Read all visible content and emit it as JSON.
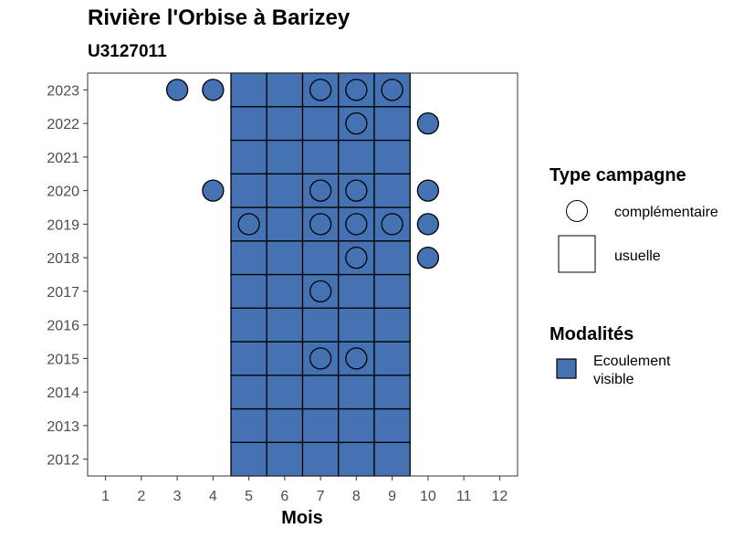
{
  "chart_data": {
    "type": "heatmap",
    "title": "Rivière l'Orbise à Barizey",
    "subtitle": "U3127011",
    "xlabel": "Mois",
    "ylabel": "",
    "x_ticks": [
      "1",
      "2",
      "3",
      "4",
      "5",
      "6",
      "7",
      "8",
      "9",
      "10",
      "11",
      "12"
    ],
    "y_ticks": [
      "2012",
      "2013",
      "2014",
      "2015",
      "2016",
      "2017",
      "2018",
      "2019",
      "2020",
      "2021",
      "2022",
      "2023"
    ],
    "xlim": [
      0.5,
      12.5
    ],
    "ylim": [
      2011.5,
      2023.5
    ],
    "tiles": [
      {
        "year": 2012,
        "months": [
          5,
          6,
          7,
          8,
          9
        ]
      },
      {
        "year": 2013,
        "months": [
          5,
          6,
          7,
          8,
          9
        ]
      },
      {
        "year": 2014,
        "months": [
          5,
          6,
          7,
          8,
          9
        ]
      },
      {
        "year": 2015,
        "months": [
          5,
          6,
          7,
          8,
          9
        ]
      },
      {
        "year": 2016,
        "months": [
          5,
          6,
          7,
          8,
          9
        ]
      },
      {
        "year": 2017,
        "months": [
          5,
          6,
          7,
          8,
          9
        ]
      },
      {
        "year": 2018,
        "months": [
          5,
          6,
          7,
          8,
          9
        ]
      },
      {
        "year": 2019,
        "months": [
          5,
          6,
          7,
          8,
          9
        ]
      },
      {
        "year": 2020,
        "months": [
          5,
          6,
          7,
          8,
          9
        ]
      },
      {
        "year": 2021,
        "months": [
          5,
          6,
          7,
          8,
          9
        ]
      },
      {
        "year": 2022,
        "months": [
          5,
          6,
          7,
          8,
          9
        ]
      },
      {
        "year": 2023,
        "months": [
          5,
          6,
          7,
          8,
          9
        ]
      }
    ],
    "points": [
      {
        "year": 2023,
        "months": [
          3,
          4,
          7,
          8,
          9
        ]
      },
      {
        "year": 2022,
        "months": [
          8,
          10
        ]
      },
      {
        "year": 2020,
        "months": [
          4,
          7,
          8,
          10
        ]
      },
      {
        "year": 2019,
        "months": [
          5,
          7,
          8,
          9,
          10
        ]
      },
      {
        "year": 2018,
        "months": [
          8,
          10
        ]
      },
      {
        "year": 2017,
        "months": [
          7
        ]
      },
      {
        "year": 2015,
        "months": [
          7,
          8
        ]
      }
    ],
    "legend_type": {
      "title": "Type campagne",
      "items": [
        {
          "shape": "circle",
          "label": "complémentaire"
        },
        {
          "shape": "square",
          "label": "usuelle"
        }
      ]
    },
    "legend_modalites": {
      "title": "Modalités",
      "items": [
        {
          "label_lines": [
            "Ecoulement",
            "visible"
          ],
          "color": "#4572b3"
        }
      ]
    },
    "legend_placement": "right",
    "colors": {
      "fill": "#4572b3",
      "stroke": "#000000",
      "panel_border": "#333333",
      "tick_text": "#4d4d4d"
    },
    "grid": false
  }
}
